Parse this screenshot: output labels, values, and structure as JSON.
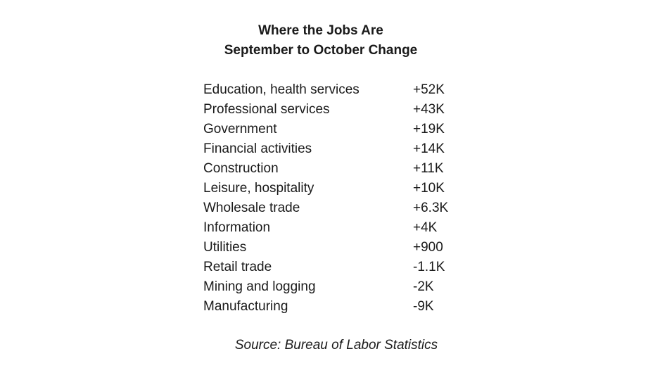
{
  "chart_data": {
    "type": "table",
    "title": "Where the Jobs Are",
    "subtitle": "September to October Change",
    "columns": [
      "",
      ""
    ],
    "rows": [
      {
        "label": "Education, health services",
        "display": "+52K",
        "value": 52000
      },
      {
        "label": "Professional services",
        "display": "+43K",
        "value": 43000
      },
      {
        "label": "Government",
        "display": "+19K",
        "value": 19000
      },
      {
        "label": "Financial activities",
        "display": "+14K",
        "value": 14000
      },
      {
        "label": "Construction",
        "display": "+11K",
        "value": 11000
      },
      {
        "label": "Leisure, hospitality",
        "display": "+10K",
        "value": 10000
      },
      {
        "label": "Wholesale trade",
        "display": "+6.3K",
        "value": 6300
      },
      {
        "label": "Information",
        "display": "+4K",
        "value": 4000
      },
      {
        "label": "Utilities",
        "display": "+900",
        "value": 900
      },
      {
        "label": "Retail trade",
        "display": "-1.1K",
        "value": -1100
      },
      {
        "label": "Mining and logging",
        "display": "-2K",
        "value": -2000
      },
      {
        "label": "Manufacturing",
        "display": "-9K",
        "value": -9000
      }
    ],
    "source": "Source: Bureau of Labor Statistics"
  }
}
